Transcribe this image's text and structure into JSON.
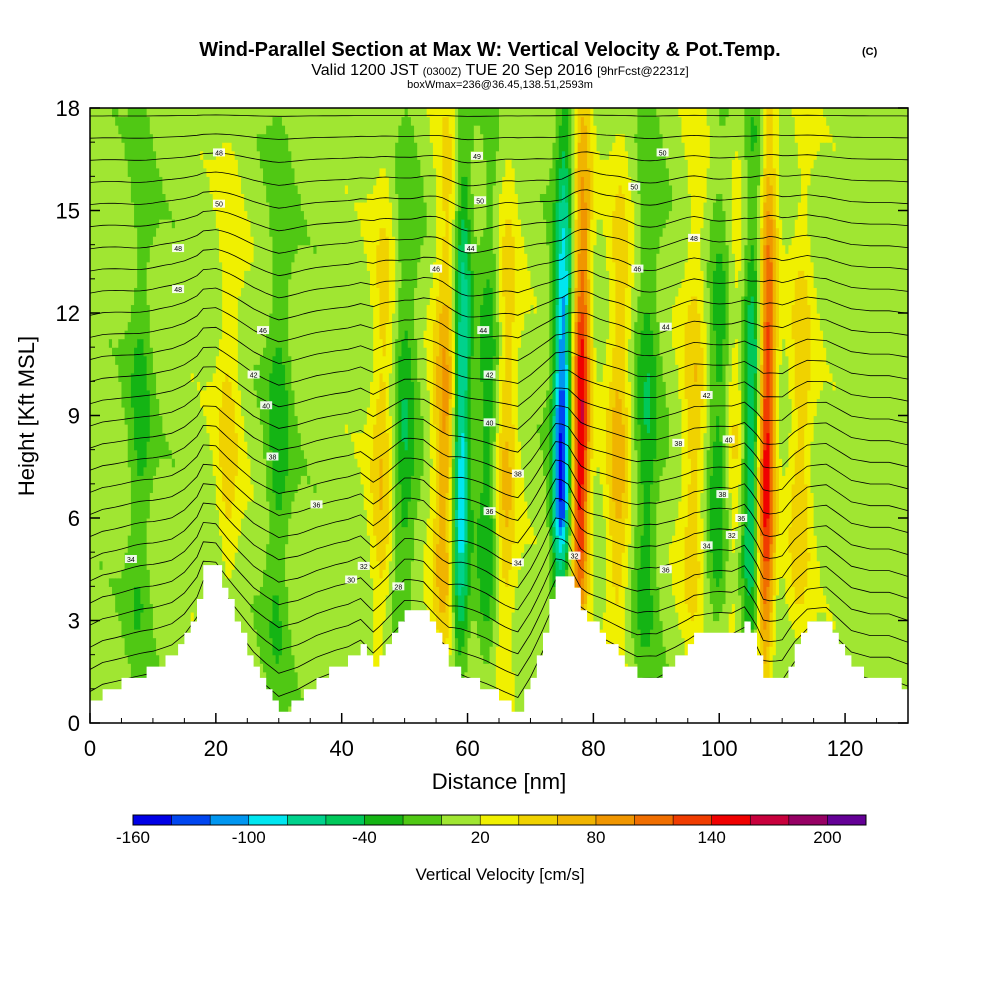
{
  "chart_data": {
    "type": "heatmap",
    "title": "Wind-Parallel Section at Max W: Vertical Velocity & Pot.Temp.",
    "title_suffix": "(C)",
    "subtitle_a": "Valid 1200 JST",
    "subtitle_utc": "(0300Z)",
    "subtitle_b": "TUE 20 Sep 2016",
    "subtitle_fcst": "[9hrFcst@2231z]",
    "info_line": "boxWmax=236@36.45,138.51,2593m",
    "xlabel": "Distance [nm]",
    "ylabel": "Height [Kft MSL]",
    "xlim": [
      0,
      130
    ],
    "ylim": [
      0,
      18
    ],
    "x_ticks": [
      0,
      20,
      40,
      60,
      80,
      100,
      120
    ],
    "y_ticks": [
      0,
      3,
      6,
      9,
      12,
      15,
      18
    ],
    "colorbar": {
      "title": "Vertical Velocity [cm/s]",
      "min": -160,
      "max": 220,
      "step": 20,
      "tick_labels": [
        "-160",
        "-100",
        "-40",
        "20",
        "80",
        "140",
        "200"
      ],
      "colors": [
        "#0000e6",
        "#0046f0",
        "#0096f0",
        "#00e6f0",
        "#00d28c",
        "#00c85a",
        "#14b414",
        "#50c814",
        "#a0e632",
        "#f0f000",
        "#f0d200",
        "#f0b400",
        "#f09600",
        "#f06e00",
        "#f03c00",
        "#f00000",
        "#c8003c",
        "#960064",
        "#640096"
      ]
    },
    "updrafts": [
      {
        "x": 56.5,
        "peak_cm_s": 75
      },
      {
        "x": 78,
        "peak_cm_s": 150
      },
      {
        "x": 107.5,
        "peak_cm_s": 150
      },
      {
        "x": 103,
        "peak_cm_s": 50
      },
      {
        "x": 46.5,
        "peak_cm_s": 45
      },
      {
        "x": 66,
        "peak_cm_s": 55
      },
      {
        "x": 84,
        "peak_cm_s": 55
      },
      {
        "x": 96,
        "peak_cm_s": 45
      },
      {
        "x": 113,
        "peak_cm_s": 45
      },
      {
        "x": 22,
        "peak_cm_s": 35
      }
    ],
    "downdrafts": [
      {
        "x": 59,
        "peak_cm_s": -110
      },
      {
        "x": 75,
        "peak_cm_s": -150
      },
      {
        "x": 105,
        "peak_cm_s": -90
      },
      {
        "x": 63.5,
        "peak_cm_s": -50
      },
      {
        "x": 50,
        "peak_cm_s": -45
      },
      {
        "x": 88.5,
        "peak_cm_s": -45
      },
      {
        "x": 100,
        "peak_cm_s": -45
      },
      {
        "x": 30,
        "peak_cm_s": -40
      },
      {
        "x": 8,
        "peak_cm_s": -35
      }
    ],
    "terrain_kft": [
      [
        0,
        0.6
      ],
      [
        2,
        1.0
      ],
      [
        6,
        1.3
      ],
      [
        10,
        1.6
      ],
      [
        13,
        2.0
      ],
      [
        15,
        2.6
      ],
      [
        17,
        3.6
      ],
      [
        18,
        4.6
      ],
      [
        20,
        4.6
      ],
      [
        22,
        3.6
      ],
      [
        24,
        2.6
      ],
      [
        26,
        1.6
      ],
      [
        28,
        0.9
      ],
      [
        30,
        0.3
      ],
      [
        33,
        0.7
      ],
      [
        36,
        1.3
      ],
      [
        39,
        1.7
      ],
      [
        41,
        1.9
      ],
      [
        43,
        2.3
      ],
      [
        45,
        1.6
      ],
      [
        47,
        2.3
      ],
      [
        50,
        3.3
      ],
      [
        53,
        3.3
      ],
      [
        55,
        2.6
      ],
      [
        57,
        1.8
      ],
      [
        60,
        1.3
      ],
      [
        63,
        1.0
      ],
      [
        66,
        0.6
      ],
      [
        68,
        0.3
      ],
      [
        70,
        1.4
      ],
      [
        72,
        2.8
      ],
      [
        74,
        4.3
      ],
      [
        76,
        4.3
      ],
      [
        78,
        3.3
      ],
      [
        81,
        2.6
      ],
      [
        84,
        2.0
      ],
      [
        87,
        1.3
      ],
      [
        90,
        1.3
      ],
      [
        93,
        1.9
      ],
      [
        96,
        2.6
      ],
      [
        100,
        2.6
      ],
      [
        102,
        2.6
      ],
      [
        104,
        3.0
      ],
      [
        106,
        2.0
      ],
      [
        107,
        1.3
      ],
      [
        110,
        1.3
      ],
      [
        112,
        2.3
      ],
      [
        114,
        3.0
      ],
      [
        117,
        3.0
      ],
      [
        119,
        2.3
      ],
      [
        121,
        1.6
      ],
      [
        124,
        1.3
      ],
      [
        127,
        1.3
      ],
      [
        130,
        0.9
      ]
    ],
    "isentrope_labels": [
      {
        "x": 20.5,
        "y": 16.7,
        "text": "48"
      },
      {
        "x": 20.5,
        "y": 15.2,
        "text": "50"
      },
      {
        "x": 14,
        "y": 13.9,
        "text": "48"
      },
      {
        "x": 14,
        "y": 12.7,
        "text": "48"
      },
      {
        "x": 27.5,
        "y": 11.5,
        "text": "46"
      },
      {
        "x": 26,
        "y": 10.2,
        "text": "42"
      },
      {
        "x": 28,
        "y": 9.3,
        "text": "40"
      },
      {
        "x": 29,
        "y": 7.8,
        "text": "38"
      },
      {
        "x": 36,
        "y": 6.4,
        "text": "36"
      },
      {
        "x": 6.5,
        "y": 4.8,
        "text": "34"
      },
      {
        "x": 43.5,
        "y": 4.6,
        "text": "32"
      },
      {
        "x": 41.5,
        "y": 4.2,
        "text": "30"
      },
      {
        "x": 49,
        "y": 4.0,
        "text": "28"
      },
      {
        "x": 61.5,
        "y": 16.6,
        "text": "49"
      },
      {
        "x": 62,
        "y": 15.3,
        "text": "50"
      },
      {
        "x": 55,
        "y": 13.3,
        "text": "46"
      },
      {
        "x": 60.5,
        "y": 13.9,
        "text": "44"
      },
      {
        "x": 62.5,
        "y": 11.5,
        "text": "44"
      },
      {
        "x": 63.5,
        "y": 10.2,
        "text": "42"
      },
      {
        "x": 63.5,
        "y": 8.8,
        "text": "40"
      },
      {
        "x": 68,
        "y": 7.3,
        "text": "38"
      },
      {
        "x": 63.5,
        "y": 6.2,
        "text": "36"
      },
      {
        "x": 68,
        "y": 4.7,
        "text": "34"
      },
      {
        "x": 77,
        "y": 4.9,
        "text": "32"
      },
      {
        "x": 91,
        "y": 16.7,
        "text": "50"
      },
      {
        "x": 86.5,
        "y": 15.7,
        "text": "50"
      },
      {
        "x": 96,
        "y": 14.2,
        "text": "48"
      },
      {
        "x": 87,
        "y": 13.3,
        "text": "46"
      },
      {
        "x": 91.5,
        "y": 11.6,
        "text": "44"
      },
      {
        "x": 98,
        "y": 9.6,
        "text": "42"
      },
      {
        "x": 93.5,
        "y": 8.2,
        "text": "38"
      },
      {
        "x": 101.5,
        "y": 8.3,
        "text": "40"
      },
      {
        "x": 100.5,
        "y": 6.7,
        "text": "38"
      },
      {
        "x": 103.5,
        "y": 6.0,
        "text": "36"
      },
      {
        "x": 98,
        "y": 5.2,
        "text": "34"
      },
      {
        "x": 102,
        "y": 5.5,
        "text": "32"
      },
      {
        "x": 91.5,
        "y": 4.5,
        "text": "36"
      }
    ]
  }
}
